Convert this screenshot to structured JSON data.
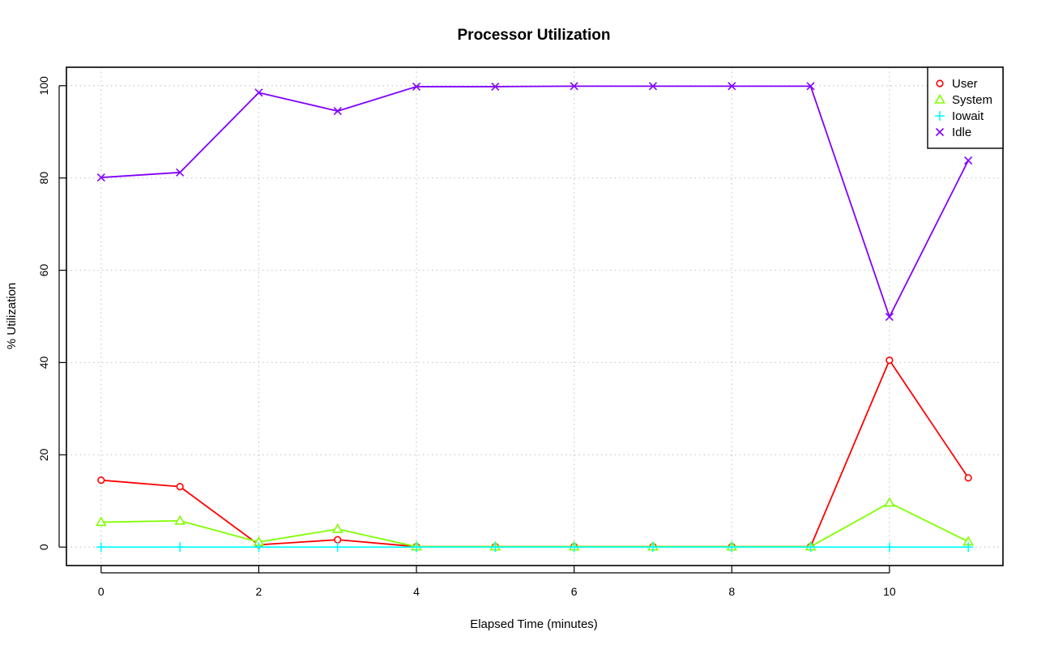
{
  "chart_data": {
    "type": "line",
    "title": "Processor Utilization",
    "xlabel": "Elapsed Time (minutes)",
    "ylabel": "% Utilization",
    "x": [
      0,
      1,
      2,
      3,
      4,
      5,
      6,
      7,
      8,
      9,
      10,
      11
    ],
    "xlim": [
      -0.44,
      11.44
    ],
    "ylim": [
      -4,
      104
    ],
    "xticks": [
      "0",
      "2",
      "4",
      "6",
      "8",
      "10"
    ],
    "yticks": [
      "0",
      "20",
      "40",
      "60",
      "80",
      "100"
    ],
    "grid": true,
    "legend_position": "top-right",
    "series": [
      {
        "name": "User",
        "color": "#ff0000",
        "marker": "circle",
        "values": [
          14.5,
          13.1,
          0.5,
          1.6,
          0.1,
          0.1,
          0.1,
          0.1,
          0.1,
          0.1,
          40.5,
          15.0
        ]
      },
      {
        "name": "System",
        "color": "#80ff00",
        "marker": "triangle",
        "values": [
          5.4,
          5.7,
          1.1,
          3.9,
          0.1,
          0.1,
          0.1,
          0.1,
          0.1,
          0.1,
          9.6,
          1.2
        ]
      },
      {
        "name": "Iowait",
        "color": "#00ffff",
        "marker": "plus",
        "values": [
          0,
          0,
          0,
          0,
          0,
          0,
          0,
          0,
          0,
          0,
          0,
          0
        ]
      },
      {
        "name": "Idle",
        "color": "#8000ff",
        "marker": "cross",
        "values": [
          80.1,
          81.2,
          98.5,
          94.5,
          99.8,
          99.8,
          99.9,
          99.9,
          99.9,
          99.9,
          49.9,
          83.8
        ]
      }
    ]
  }
}
